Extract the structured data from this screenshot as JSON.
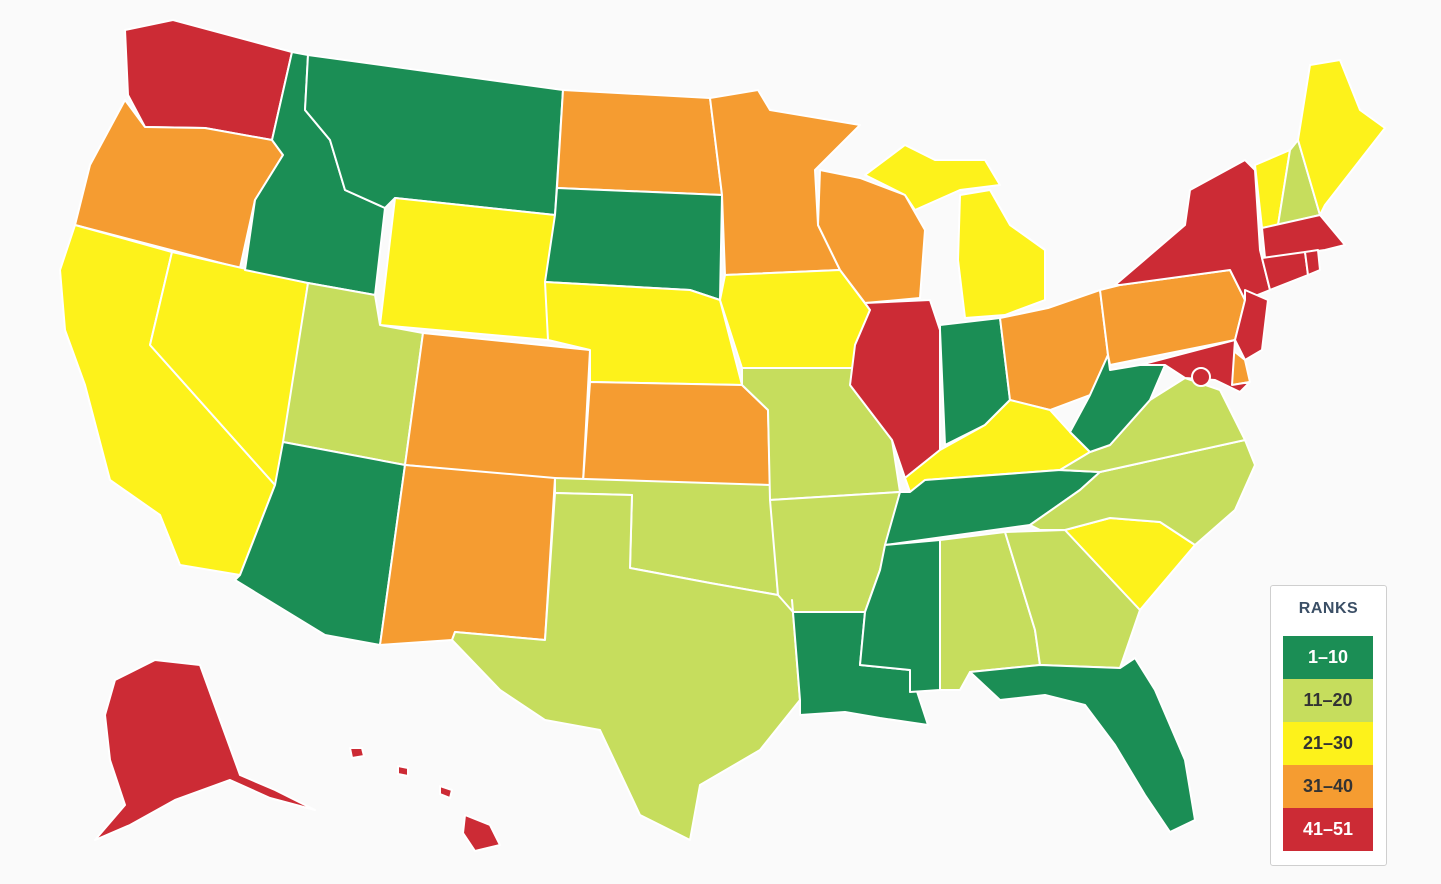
{
  "legend": {
    "title": "RANKS",
    "items": [
      {
        "label": "1–10",
        "color": "#1b8e55"
      },
      {
        "label": "11–20",
        "color": "#c6dd5d"
      },
      {
        "label": "21–30",
        "color": "#fdf21b"
      },
      {
        "label": "31–40",
        "color": "#f59c31"
      },
      {
        "label": "41–51",
        "color": "#cc2b35"
      }
    ]
  },
  "states": [
    {
      "id": "WA",
      "tier": 4
    },
    {
      "id": "OR",
      "tier": 3
    },
    {
      "id": "CA",
      "tier": 2
    },
    {
      "id": "NV",
      "tier": 2
    },
    {
      "id": "ID",
      "tier": 0
    },
    {
      "id": "MT",
      "tier": 0
    },
    {
      "id": "WY",
      "tier": 2
    },
    {
      "id": "UT",
      "tier": 1
    },
    {
      "id": "AZ",
      "tier": 0
    },
    {
      "id": "CO",
      "tier": 3
    },
    {
      "id": "NM",
      "tier": 3
    },
    {
      "id": "ND",
      "tier": 3
    },
    {
      "id": "SD",
      "tier": 0
    },
    {
      "id": "NE",
      "tier": 2
    },
    {
      "id": "KS",
      "tier": 3
    },
    {
      "id": "OK",
      "tier": 1
    },
    {
      "id": "TX",
      "tier": 1
    },
    {
      "id": "MN",
      "tier": 3
    },
    {
      "id": "IA",
      "tier": 2
    },
    {
      "id": "MO",
      "tier": 1
    },
    {
      "id": "AR",
      "tier": 1
    },
    {
      "id": "LA",
      "tier": 0
    },
    {
      "id": "WI",
      "tier": 3
    },
    {
      "id": "IL",
      "tier": 4
    },
    {
      "id": "MI-UP",
      "tier": 2
    },
    {
      "id": "MI",
      "tier": 2
    },
    {
      "id": "IN",
      "tier": 0
    },
    {
      "id": "OH",
      "tier": 3
    },
    {
      "id": "KY",
      "tier": 2
    },
    {
      "id": "TN",
      "tier": 0
    },
    {
      "id": "MS",
      "tier": 0
    },
    {
      "id": "AL",
      "tier": 1
    },
    {
      "id": "GA",
      "tier": 1
    },
    {
      "id": "FL",
      "tier": 0
    },
    {
      "id": "SC",
      "tier": 2
    },
    {
      "id": "NC",
      "tier": 1
    },
    {
      "id": "VA",
      "tier": 1
    },
    {
      "id": "WV",
      "tier": 0
    },
    {
      "id": "PA",
      "tier": 3
    },
    {
      "id": "NY",
      "tier": 4
    },
    {
      "id": "NJ",
      "tier": 4
    },
    {
      "id": "DE",
      "tier": 3
    },
    {
      "id": "MD",
      "tier": 4
    },
    {
      "id": "DC",
      "tier": 4
    },
    {
      "id": "VT",
      "tier": 2
    },
    {
      "id": "NH",
      "tier": 1
    },
    {
      "id": "ME",
      "tier": 2
    },
    {
      "id": "MA",
      "tier": 4
    },
    {
      "id": "CT",
      "tier": 4
    },
    {
      "id": "RI",
      "tier": 4
    },
    {
      "id": "AK",
      "tier": 4
    },
    {
      "id": "HI",
      "tier": 4
    }
  ]
}
